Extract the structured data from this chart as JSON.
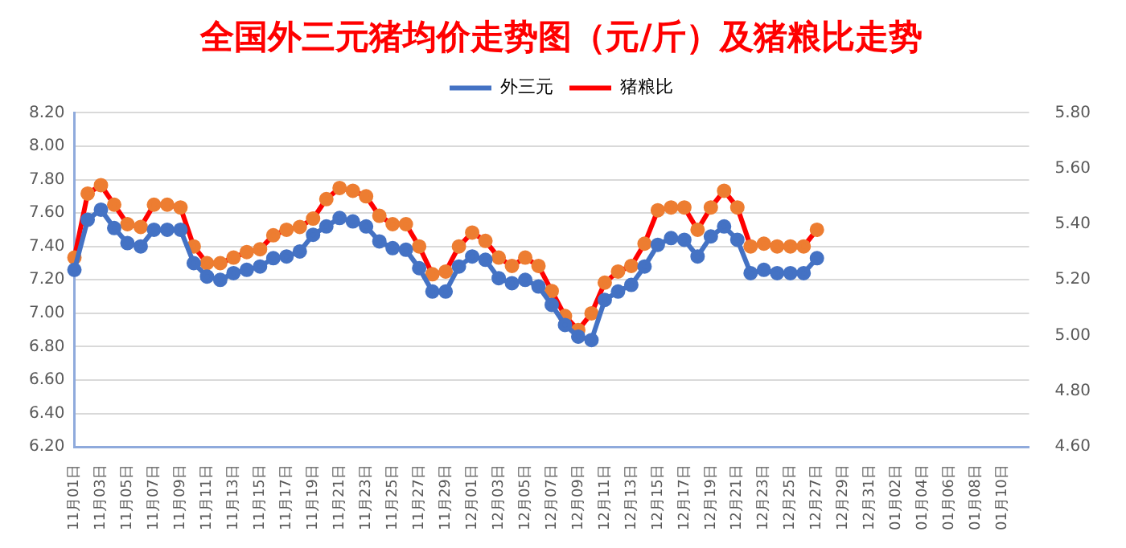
{
  "chart_data": {
    "type": "line",
    "title": "全国外三元猪均价走势图（元/斤）及猪粮比走势",
    "categories": [
      "11月01日",
      null,
      "11月03日",
      null,
      "11月05日",
      null,
      "11月07日",
      null,
      "11月09日",
      null,
      "11月11日",
      null,
      "11月13日",
      null,
      "11月15日",
      null,
      "11月17日",
      null,
      "11月19日",
      null,
      "11月21日",
      null,
      "11月23日",
      null,
      "11月25日",
      null,
      "11月27日",
      null,
      "11月29日",
      null,
      "12月01日",
      null,
      "12月03日",
      null,
      "12月05日",
      null,
      "12月07日",
      null,
      "12月09日",
      null,
      "12月11日",
      null,
      "12月13日",
      null,
      "12月15日",
      null,
      "12月17日",
      null,
      "12月19日",
      null,
      "12月21日",
      null,
      "12月23日",
      null,
      "12月25日",
      null,
      "12月27日",
      null,
      "12月29日",
      null,
      "12月31日",
      null,
      "01月02日",
      null,
      "01月04日",
      null,
      "01月06日",
      null,
      "01月08日",
      null,
      "01月10日",
      null,
      null
    ],
    "series": [
      {
        "name": "外三元",
        "color": "#4472c4",
        "values": [
          7.26,
          7.56,
          7.62,
          7.51,
          7.42,
          7.4,
          7.5,
          7.5,
          7.5,
          7.3,
          7.22,
          7.2,
          7.24,
          7.26,
          7.28,
          7.33,
          7.34,
          7.37,
          7.47,
          7.52,
          7.57,
          7.55,
          7.52,
          7.43,
          7.39,
          7.38,
          7.27,
          7.13,
          7.13,
          7.28,
          7.34,
          7.32,
          7.21,
          7.18,
          7.2,
          7.16,
          7.05,
          6.93,
          6.86,
          6.84,
          7.08,
          7.13,
          7.17,
          7.28,
          7.41,
          7.45,
          7.44,
          7.34,
          7.46,
          7.52,
          7.44,
          7.24,
          7.26,
          7.24,
          7.24,
          7.24,
          7.33,
          null,
          null,
          null,
          null,
          null,
          null,
          null,
          null,
          null,
          null,
          null,
          null,
          null,
          null,
          null,
          null
        ]
      },
      {
        "name": "猪粮比",
        "color": "#ff0000",
        "axis": "y2",
        "values": [
          5.28,
          5.51,
          5.54,
          5.47,
          5.4,
          5.39,
          5.47,
          5.47,
          5.46,
          5.32,
          5.26,
          5.26,
          5.28,
          5.3,
          5.31,
          5.36,
          5.38,
          5.39,
          5.42,
          5.49,
          5.53,
          5.52,
          5.5,
          5.43,
          5.4,
          5.4,
          5.32,
          5.22,
          5.23,
          5.32,
          5.37,
          5.34,
          5.28,
          5.25,
          5.28,
          5.25,
          5.16,
          5.07,
          5.02,
          5.08,
          5.19,
          5.23,
          5.25,
          5.33,
          5.45,
          5.46,
          5.46,
          5.38,
          5.46,
          5.52,
          5.46,
          5.32,
          5.33,
          5.32,
          5.32,
          5.32,
          5.38,
          null,
          null,
          null,
          null,
          null,
          null,
          null,
          null,
          null,
          null,
          null,
          null,
          null,
          null,
          null,
          null
        ],
        "colors": [
          "#ed7d31",
          "#ed7d31",
          "#ed7d31",
          "#ed7d31",
          "#ed7d31",
          "#ed7d31",
          "#ed7d31",
          "#ed7d31",
          "#ed7d31",
          "#ed7d31",
          "#ed7d31",
          "#ed7d31",
          "#ed7d31",
          "#ed7d31",
          "#ed7d31",
          "#ed7d31",
          "#ed7d31",
          "#ed7d31",
          "#ed7d31",
          "#ed7d31",
          "#ed7d31",
          "#ed7d31",
          "#ed7d31",
          "#ed7d31",
          "#ed7d31",
          "#ed7d31",
          "#ed7d31",
          "#ed7d31",
          "#ed7d31",
          "#ed7d31",
          "#ed7d31",
          "#ed7d31",
          "#ed7d31",
          "#ed7d31",
          "#ed7d31",
          "#ed7d31",
          "#ed7d31",
          "#ed7d31",
          "#ed7d31",
          "#ed7d31",
          "#ed7d31",
          "#ed7d31",
          "#ed7d31",
          "#ed7d31",
          "#ed7d31",
          "#ed7d31",
          "#ed7d31",
          "#ed7d31",
          "#ed7d31",
          "#ed7d31",
          "#ed7d31",
          "#ed7d31",
          "#ed7d31",
          "#ed7d31",
          "#ed7d31",
          "#ed7d31",
          "#ed7d31",
          "#ed7d31",
          "#ed7d31",
          "#ed7d31",
          "#ed7d31",
          "#ed7d31",
          "#ed7d31",
          "#ed7d31",
          "#ed7d31",
          "#ed7d31",
          "#ed7d31",
          "#ed7d31",
          "#ed7d31",
          "#ed7d31",
          "#ed7d31",
          "#ed7d31",
          "#ed7d31"
        ]
      }
    ],
    "ylim": [
      6.2,
      8.2
    ],
    "yticks": [
      {
        "value": 6.2,
        "label": "6.20"
      },
      {
        "value": 6.4,
        "label": "6.40"
      },
      {
        "value": 6.6,
        "label": "6.60"
      },
      {
        "value": 6.8,
        "label": "6.80"
      },
      {
        "value": 7.0,
        "label": "7.00"
      },
      {
        "value": 7.2,
        "label": "7.20"
      },
      {
        "value": 7.4,
        "label": "7.40"
      },
      {
        "value": 7.6,
        "label": "7.60"
      },
      {
        "value": 7.8,
        "label": "7.80"
      },
      {
        "value": 8.0,
        "label": "8.00"
      },
      {
        "value": 8.2,
        "label": "8.20"
      }
    ],
    "y2lim": [
      4.6,
      5.8
    ],
    "y2ticks": [
      {
        "value": 4.6,
        "label": "4.60"
      },
      {
        "value": 4.8,
        "label": "4.80"
      },
      {
        "value": 5.0,
        "label": "5.00"
      },
      {
        "value": 5.2,
        "label": "5.20"
      },
      {
        "value": 5.4,
        "label": "5.40"
      },
      {
        "value": 5.6,
        "label": "5.60"
      },
      {
        "value": 5.8,
        "label": "5.80"
      }
    ],
    "grid": "y",
    "legend": "top",
    "marker": "circle",
    "line_style": "solid"
  }
}
